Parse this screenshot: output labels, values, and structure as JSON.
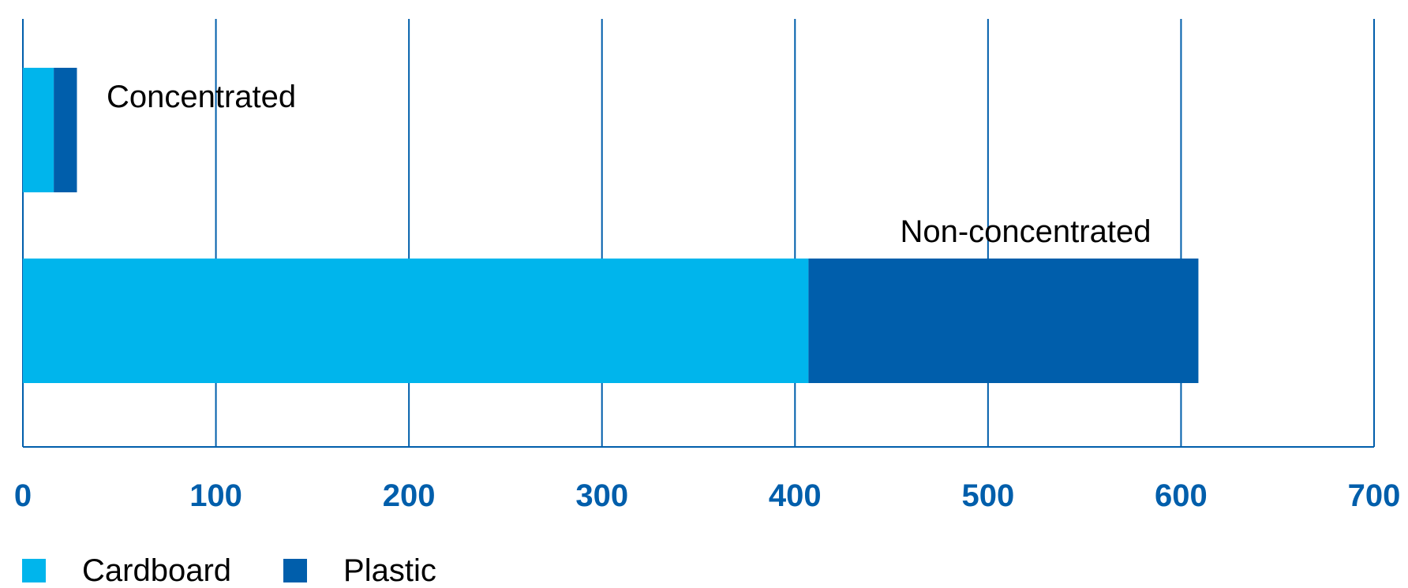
{
  "chart_data": {
    "type": "bar",
    "orientation": "horizontal",
    "stacked": true,
    "categories": [
      "Concentrated",
      "Non-concentrated"
    ],
    "series": [
      {
        "name": "Cardboard",
        "values": [
          16,
          407
        ],
        "color": "#00b5ec"
      },
      {
        "name": "Plastic",
        "values": [
          12,
          202
        ],
        "color": "#005eab"
      }
    ],
    "xlim": [
      0,
      700
    ],
    "xticks": [
      "0",
      "100",
      "200",
      "300",
      "400",
      "500",
      "600",
      "700"
    ],
    "grid": true,
    "legend": "bottom-left",
    "colors": {
      "axis": "#005eab",
      "tick_label": "#005eab",
      "category_label": "#000000"
    }
  },
  "legend": {
    "items": [
      {
        "label": "Cardboard",
        "color": "#00b5ec"
      },
      {
        "label": "Plastic",
        "color": "#005eab"
      }
    ]
  }
}
